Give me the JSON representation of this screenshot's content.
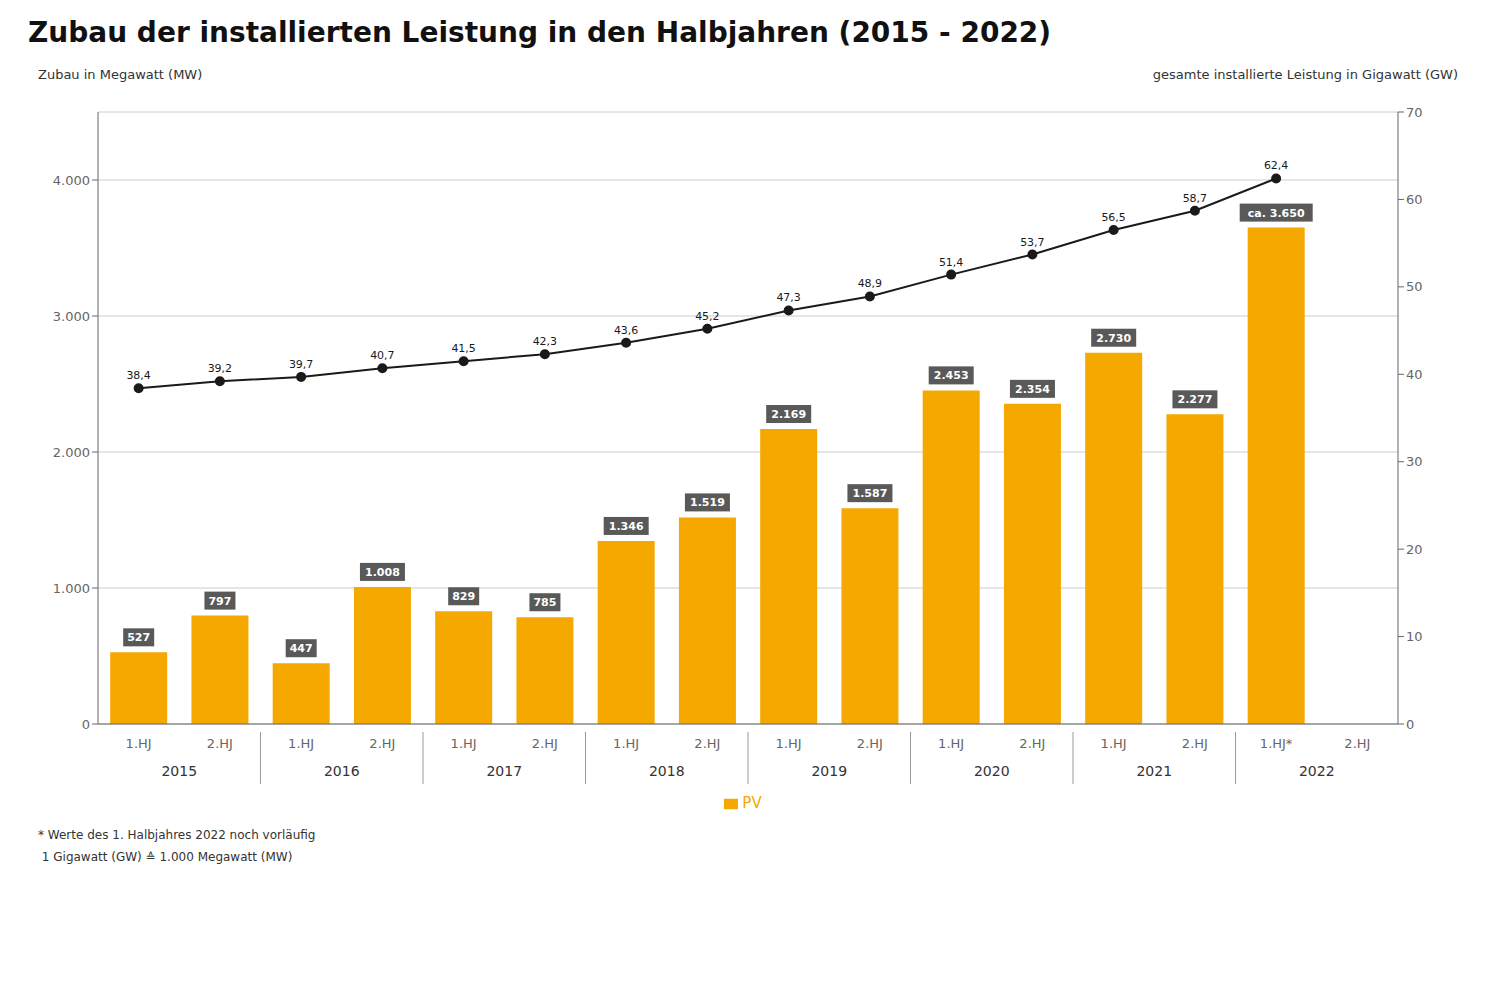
{
  "chart_data": {
    "type": "bar",
    "title": "Zubau der installierten Leistung in den Halbjahren (2015 - 2022)",
    "ylabel": "Zubau in Megawatt (MW)",
    "y2label": "gesamte installierte Leistung in Gigawatt (GW)",
    "categories": [
      "1.HJ",
      "2.HJ",
      "1.HJ",
      "2.HJ",
      "1.HJ",
      "2.HJ",
      "1.HJ",
      "2.HJ",
      "1.HJ",
      "2.HJ",
      "1.HJ",
      "2.HJ",
      "1.HJ",
      "2.HJ",
      "1.HJ*",
      "2.HJ"
    ],
    "category_groups": [
      "2015",
      "2016",
      "2017",
      "2018",
      "2019",
      "2020",
      "2021",
      "2022"
    ],
    "series": [
      {
        "name": "PV",
        "type": "bar",
        "color": "#F5A800",
        "values": [
          527,
          797,
          447,
          1008,
          829,
          785,
          1346,
          1519,
          2169,
          1587,
          2453,
          2354,
          2730,
          2277,
          3650,
          0
        ],
        "value_labels": [
          "527",
          "797",
          "447",
          "1.008",
          "829",
          "785",
          "1.346",
          "1.519",
          "2.169",
          "1.587",
          "2.453",
          "2.354",
          "2.730",
          "2.277",
          "ca. 3.650",
          null
        ]
      },
      {
        "type": "line",
        "axis": "y2",
        "color": "#1a1a1a",
        "marker": "circle",
        "values": [
          38.4,
          39.2,
          39.7,
          40.7,
          41.5,
          42.3,
          43.6,
          45.2,
          47.3,
          48.9,
          51.4,
          53.7,
          56.5,
          58.7,
          62.4,
          null
        ],
        "value_labels": [
          "38,4",
          "39,2",
          "39,7",
          "40,7",
          "41,5",
          "42,3",
          "43,6",
          "45,2",
          "47,3",
          "48,9",
          "51,4",
          "53,7",
          "56,5",
          "58,7",
          "62,4",
          null
        ]
      }
    ],
    "ylim": [
      0,
      4500
    ],
    "yticks": [
      0,
      {
        "value": 1000,
        "label": "1.000"
      },
      {
        "value": 2000,
        "label": "2.000"
      },
      {
        "value": 3000,
        "label": "3.000"
      },
      {
        "value": 4000,
        "label": "4.000"
      }
    ],
    "y2lim": [
      0,
      70
    ],
    "y2ticks": [
      0,
      10,
      20,
      30,
      40,
      50,
      60,
      70
    ],
    "grid": true,
    "legend": "bottom",
    "data_labels": true,
    "notes": [
      "* Werte des 1. Halbjahres 2022 noch vorläufig",
      " 1 Gigawatt (GW) ≙ 1.000 Megawatt (MW)"
    ]
  }
}
